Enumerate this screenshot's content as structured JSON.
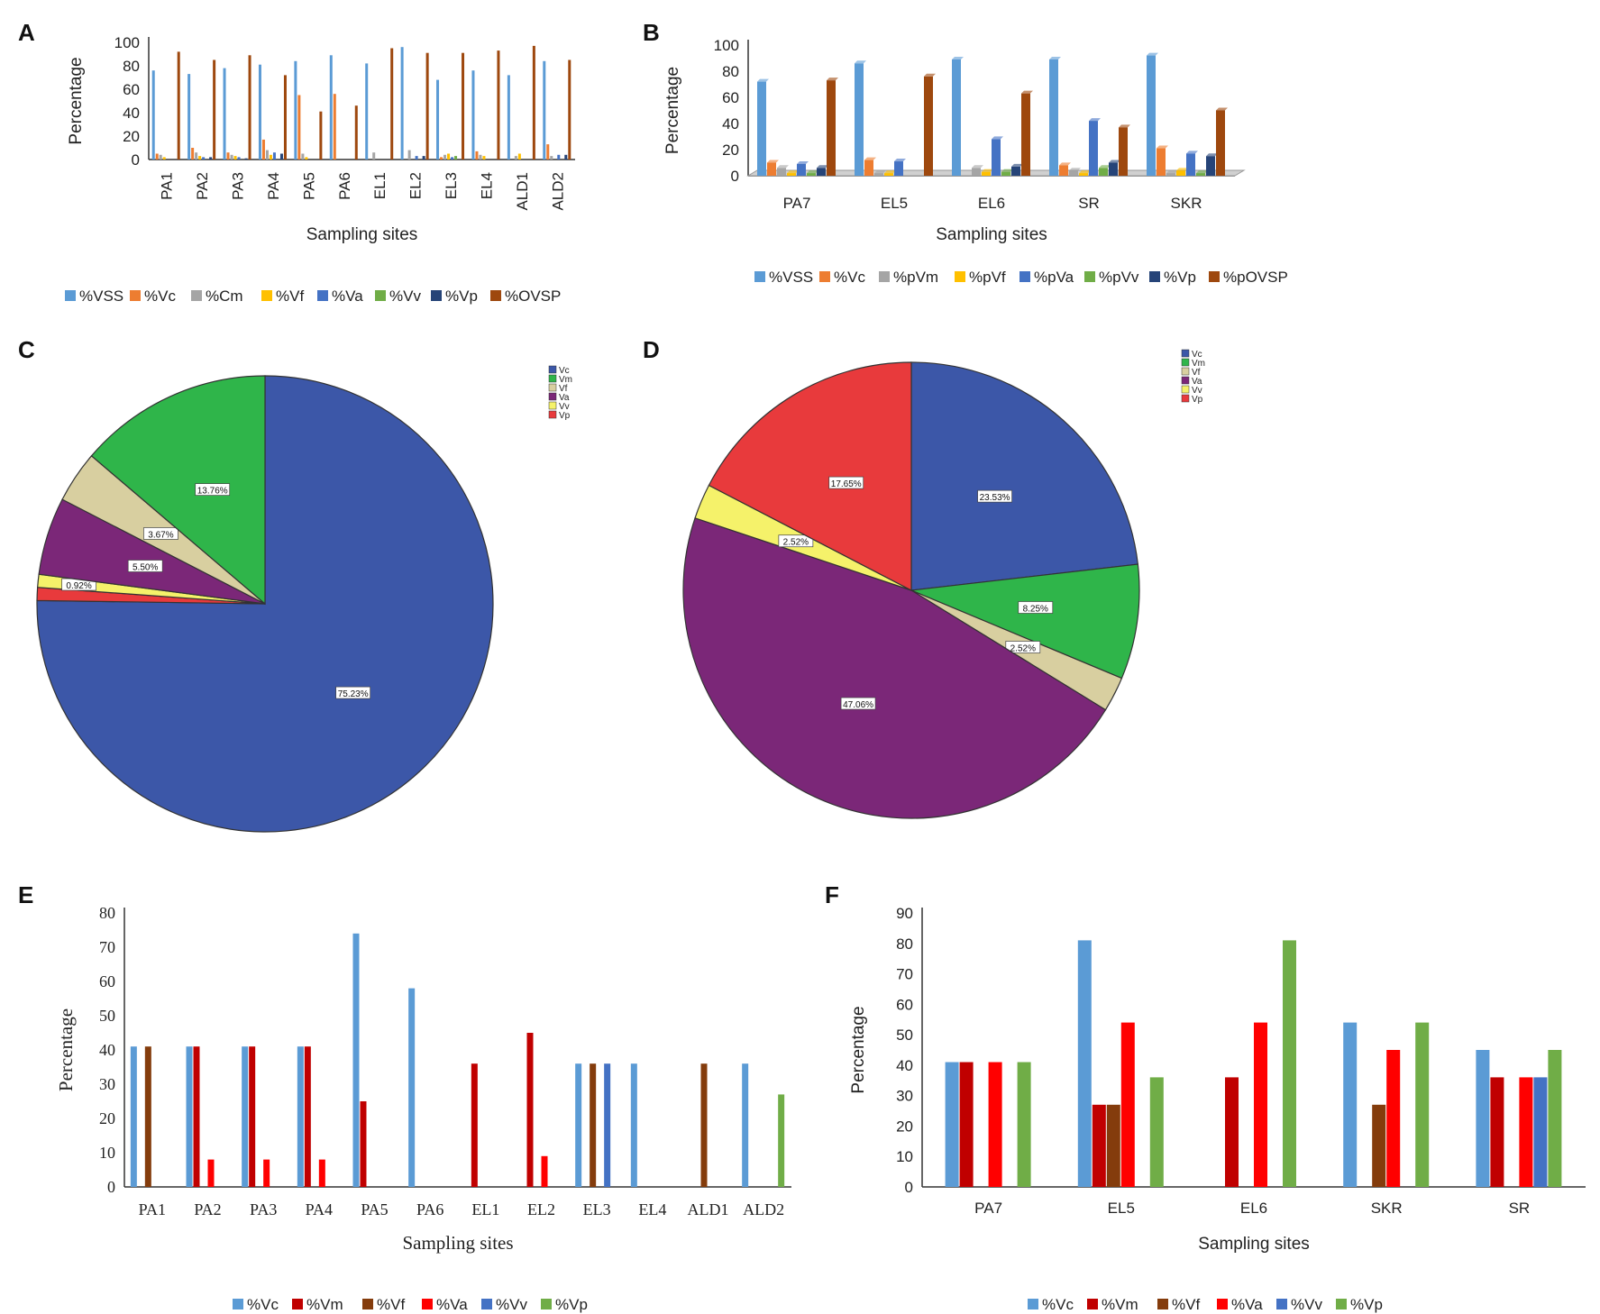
{
  "colors": {
    "VSS": "#5b9bd5",
    "Vc": "#ed7d31",
    "Cm": "#a5a5a5",
    "Vf": "#ffc000",
    "Va": "#4472c4",
    "Vv": "#70ad47",
    "Vp": "#264478",
    "OVSP": "#9e480e",
    "pieVc": "#3c57a8",
    "pieVm": "#2fb54a",
    "pieVf": "#d8cfa0",
    "pieVa": "#7b2778",
    "pieVv": "#f5f26a",
    "pieVp": "#e83a3c",
    "E_Vc": "#5b9bd5",
    "E_Vm": "#c00000",
    "E_Vf": "#843c0c",
    "E_Va": "#ff0000",
    "E_Vv": "#4472c4",
    "E_Vp": "#70ad47"
  },
  "chart_data": [
    {
      "panel": "A",
      "type": "bar",
      "title": "",
      "xlabel": "Sampling sites",
      "ylabel": "Percentage",
      "ylim": [
        0,
        100
      ],
      "yticks": [
        "0",
        "20",
        "40",
        "60",
        "80",
        "100"
      ],
      "categories": [
        "PA1",
        "PA2",
        "PA3",
        "PA4",
        "PA5",
        "PA6",
        "EL1",
        "EL2",
        "EL3",
        "EL4",
        "ALD1",
        "ALD2"
      ],
      "series": [
        {
          "name": "%VSS",
          "color_key": "VSS",
          "values": [
            76,
            73,
            78,
            81,
            84,
            89,
            82,
            96,
            68,
            76,
            72,
            84
          ]
        },
        {
          "name": "%Vc",
          "color_key": "Vc",
          "values": [
            5,
            10,
            6,
            17,
            55,
            56,
            0,
            0,
            2,
            7,
            0,
            13
          ]
        },
        {
          "name": "%Cm",
          "color_key": "Cm",
          "values": [
            4,
            6,
            4,
            8,
            5,
            0,
            6,
            8,
            4,
            4,
            3,
            3
          ]
        },
        {
          "name": "%Vf",
          "color_key": "Vf",
          "values": [
            2,
            3,
            3,
            4,
            2,
            0,
            0,
            0,
            5,
            3,
            5,
            0
          ]
        },
        {
          "name": "%Va",
          "color_key": "Va",
          "values": [
            0,
            2,
            2,
            6,
            0,
            0,
            0,
            3,
            2,
            0,
            0,
            4
          ]
        },
        {
          "name": "%Vv",
          "color_key": "Vv",
          "values": [
            0,
            0,
            0,
            0,
            0,
            0,
            0,
            0,
            3,
            0,
            0,
            0
          ]
        },
        {
          "name": "%Vp",
          "color_key": "Vp",
          "values": [
            0,
            2,
            1,
            5,
            0,
            0,
            0,
            3,
            0,
            0,
            0,
            4
          ]
        },
        {
          "name": "%OVSP",
          "color_key": "OVSP",
          "values": [
            92,
            85,
            89,
            72,
            41,
            46,
            95,
            91,
            91,
            93,
            97,
            85
          ]
        }
      ],
      "legend": [
        "%VSS",
        "%Vc",
        "%Cm",
        "%Vf",
        "%Va",
        "%Vv",
        "%Vp",
        "%OVSP"
      ]
    },
    {
      "panel": "B",
      "type": "bar",
      "title": "",
      "xlabel": "Sampling sites",
      "ylabel": "Percentage",
      "ylim": [
        0,
        100
      ],
      "yticks": [
        "0",
        "20",
        "40",
        "60",
        "80",
        "100"
      ],
      "categories": [
        "PA7",
        "EL5",
        "EL6",
        "SR",
        "SKR"
      ],
      "series": [
        {
          "name": "%VSS",
          "color_key": "VSS",
          "values": [
            72,
            86,
            89,
            89,
            92
          ]
        },
        {
          "name": "%Vc",
          "color_key": "Vc",
          "values": [
            10,
            12,
            0,
            8,
            21
          ]
        },
        {
          "name": "%pVm",
          "color_key": "Cm",
          "values": [
            6,
            2,
            6,
            4,
            2
          ]
        },
        {
          "name": "%pVf",
          "color_key": "Vf",
          "values": [
            2,
            2,
            3,
            2,
            4
          ]
        },
        {
          "name": "%pVa",
          "color_key": "Va",
          "values": [
            9,
            11,
            28,
            42,
            17
          ]
        },
        {
          "name": "%pVv",
          "color_key": "Vv",
          "values": [
            2,
            0,
            3,
            6,
            2
          ]
        },
        {
          "name": "%Vp",
          "color_key": "Vp",
          "values": [
            6,
            0,
            7,
            10,
            15
          ]
        },
        {
          "name": "%pOVSP",
          "color_key": "OVSP",
          "values": [
            73,
            76,
            63,
            37,
            50
          ]
        }
      ],
      "legend": [
        "%VSS",
        "%Vc",
        "%pVm",
        "%pVf",
        "%pVa",
        "%pVv",
        "%Vp",
        "%pOVSP"
      ]
    },
    {
      "panel": "C",
      "type": "pie",
      "title": "",
      "slices": [
        {
          "name": "Vc",
          "value": 75.23,
          "label": "75.23%",
          "color_key": "pieVc"
        },
        {
          "name": "Vp",
          "value": 0.92,
          "label": "",
          "color_key": "pieVp"
        },
        {
          "name": "Vv",
          "value": 0.92,
          "label": "0.92%",
          "color_key": "pieVv"
        },
        {
          "name": "Va",
          "value": 5.5,
          "label": "5.50%",
          "color_key": "pieVa"
        },
        {
          "name": "Vf",
          "value": 3.67,
          "label": "3.67%",
          "color_key": "pieVf"
        },
        {
          "name": "Vm",
          "value": 13.76,
          "label": "13.76%",
          "color_key": "pieVm"
        }
      ],
      "legend": [
        "Vc",
        "Vm",
        "Vf",
        "Va",
        "Vv",
        "Vp"
      ]
    },
    {
      "panel": "D",
      "type": "pie",
      "title": "",
      "slices": [
        {
          "name": "Vc",
          "value": 23.53,
          "label": "23.53%",
          "color_key": "pieVc"
        },
        {
          "name": "Vm",
          "value": 8.25,
          "label": "8.25%",
          "color_key": "pieVm"
        },
        {
          "name": "Vf",
          "value": 2.52,
          "label": "2.52%",
          "color_key": "pieVf"
        },
        {
          "name": "Va",
          "value": 47.06,
          "label": "47.06%",
          "color_key": "pieVa"
        },
        {
          "name": "Vv",
          "value": 2.52,
          "label": "2.52%",
          "color_key": "pieVv"
        },
        {
          "name": "Vp",
          "value": 17.65,
          "label": "17.65%",
          "color_key": "pieVp"
        }
      ],
      "legend": [
        "Vc",
        "Vm",
        "Vf",
        "Va",
        "Vv",
        "Vp"
      ]
    },
    {
      "panel": "E",
      "type": "bar",
      "title": "",
      "xlabel": "Sampling sites",
      "ylabel": "Percentage",
      "ylim": [
        0,
        80
      ],
      "yticks": [
        "0",
        "10",
        "20",
        "30",
        "40",
        "50",
        "60",
        "70",
        "80"
      ],
      "categories": [
        "PA1",
        "PA2",
        "PA3",
        "PA4",
        "PA5",
        "PA6",
        "EL1",
        "EL2",
        "EL3",
        "EL4",
        "ALD1",
        "ALD2"
      ],
      "series": [
        {
          "name": "%Vc",
          "color_key": "E_Vc",
          "values": [
            41,
            41,
            41,
            41,
            74,
            58,
            0,
            0,
            36,
            36,
            0,
            36
          ]
        },
        {
          "name": "%Vm",
          "color_key": "E_Vm",
          "values": [
            0,
            41,
            41,
            41,
            25,
            0,
            36,
            45,
            0,
            0,
            0,
            0
          ]
        },
        {
          "name": "%Vf",
          "color_key": "E_Vf",
          "values": [
            41,
            0,
            0,
            0,
            0,
            0,
            0,
            0,
            36,
            0,
            36,
            0
          ]
        },
        {
          "name": "%Va",
          "color_key": "E_Va",
          "values": [
            0,
            8,
            8,
            8,
            0,
            0,
            0,
            9,
            0,
            0,
            0,
            0
          ]
        },
        {
          "name": "%Vv",
          "color_key": "E_Vv",
          "values": [
            0,
            0,
            0,
            0,
            0,
            0,
            0,
            0,
            36,
            0,
            0,
            0
          ]
        },
        {
          "name": "%Vp",
          "color_key": "E_Vp",
          "values": [
            0,
            0,
            0,
            0,
            0,
            0,
            0,
            0,
            0,
            0,
            0,
            27
          ]
        }
      ],
      "legend": [
        "%Vc",
        "%Vm",
        "%Vf",
        "%Va",
        "%Vv",
        "%Vp"
      ]
    },
    {
      "panel": "F",
      "type": "bar",
      "title": "",
      "xlabel": "Sampling sites",
      "ylabel": "Percentage",
      "ylim": [
        0,
        90
      ],
      "yticks": [
        "0",
        "10",
        "20",
        "30",
        "40",
        "50",
        "60",
        "70",
        "80",
        "90"
      ],
      "categories": [
        "PA7",
        "EL5",
        "EL6",
        "SKR",
        "SR"
      ],
      "series": [
        {
          "name": "%Vc",
          "color_key": "E_Vc",
          "values": [
            41,
            81,
            0,
            54,
            45
          ]
        },
        {
          "name": "%Vm",
          "color_key": "E_Vm",
          "values": [
            41,
            27,
            36,
            0,
            36
          ]
        },
        {
          "name": "%Vf",
          "color_key": "E_Vf",
          "values": [
            0,
            27,
            0,
            27,
            0
          ]
        },
        {
          "name": "%Va",
          "color_key": "E_Va",
          "values": [
            41,
            54,
            54,
            45,
            36
          ]
        },
        {
          "name": "%Vv",
          "color_key": "E_Vv",
          "values": [
            0,
            0,
            0,
            0,
            36
          ]
        },
        {
          "name": "%Vp",
          "color_key": "E_Vp",
          "values": [
            41,
            36,
            81,
            54,
            45
          ]
        }
      ],
      "legend": [
        "%Vc",
        "%Vm",
        "%Vf",
        "%Va",
        "%Vv",
        "%Vp"
      ]
    }
  ]
}
